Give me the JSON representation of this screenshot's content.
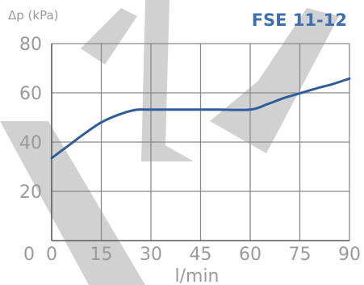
{
  "chart_data": {
    "type": "line",
    "title": "FSE 11-12",
    "ylabel": "Δp (kPa)",
    "xlabel": "l/min",
    "x_ticks": [
      0,
      15,
      30,
      45,
      60,
      75,
      90
    ],
    "y_ticks": [
      0,
      20,
      40,
      60,
      80
    ],
    "xlim": [
      0,
      90
    ],
    "ylim": [
      0,
      80
    ],
    "grid": true,
    "legend": "none",
    "line_color": "#2f5c9b",
    "series": [
      {
        "x": [
          0,
          5,
          10,
          15,
          20,
          25,
          30,
          40,
          50,
          60,
          65,
          70,
          75,
          80,
          85,
          90
        ],
        "y": [
          33.5,
          38.5,
          43.5,
          48,
          51,
          53,
          53.2,
          53.2,
          53.2,
          53.2,
          55.3,
          57.8,
          59.8,
          61.8,
          63.6,
          65.8
        ]
      }
    ]
  }
}
